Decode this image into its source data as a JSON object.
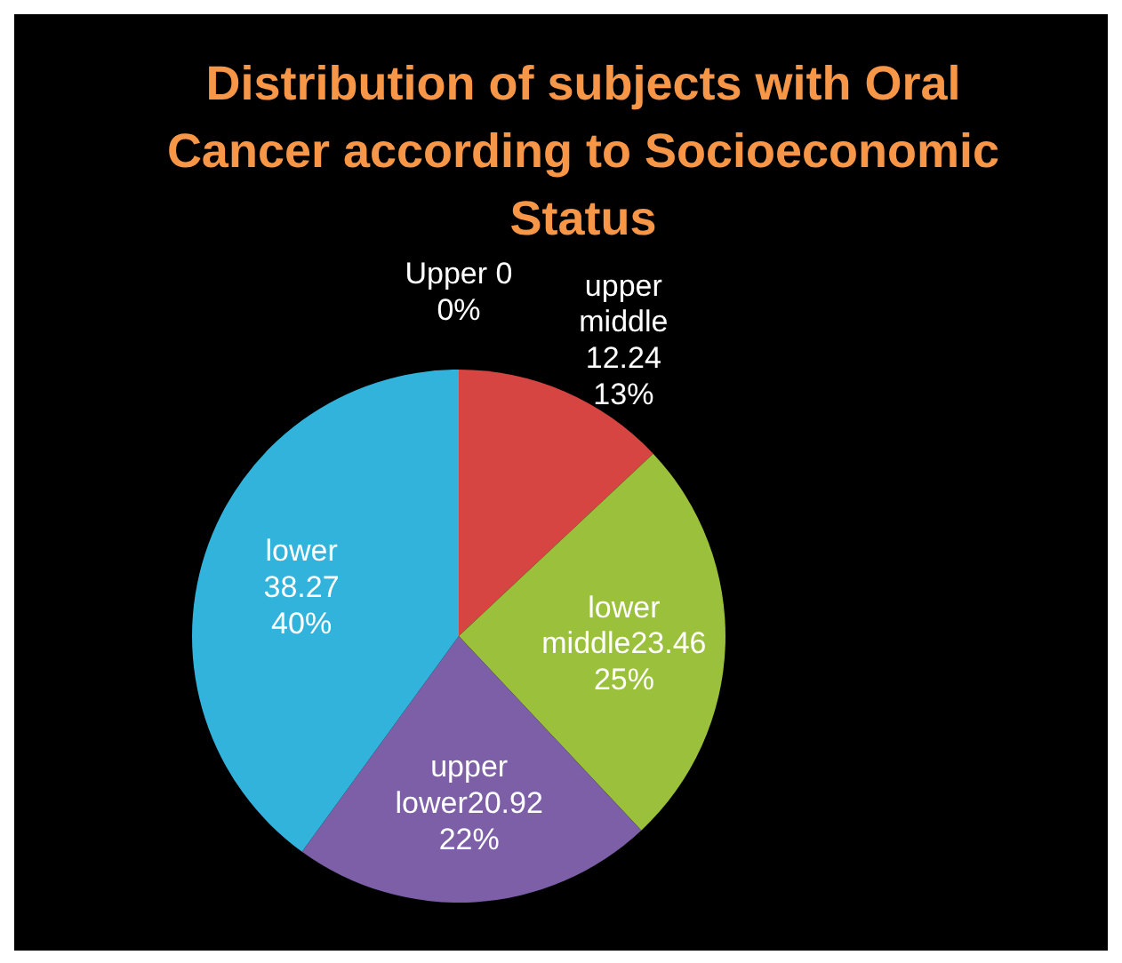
{
  "chart_data": {
    "type": "pie",
    "title": "Distribution of subjects with Oral Cancer according to Socioeconomic Status",
    "categories": [
      "Upper 0",
      "upper middle 12.24",
      "lower middle23.46",
      "upper lower20.92",
      "lower 38.27"
    ],
    "values": [
      0,
      13,
      25,
      22,
      40
    ],
    "colors": [
      "#4f81bd",
      "#d64541",
      "#9bc13c",
      "#7d5fa8",
      "#31b3dc"
    ],
    "value_labels": [
      "0%",
      "13%",
      "25%",
      "22%",
      "40%"
    ]
  }
}
